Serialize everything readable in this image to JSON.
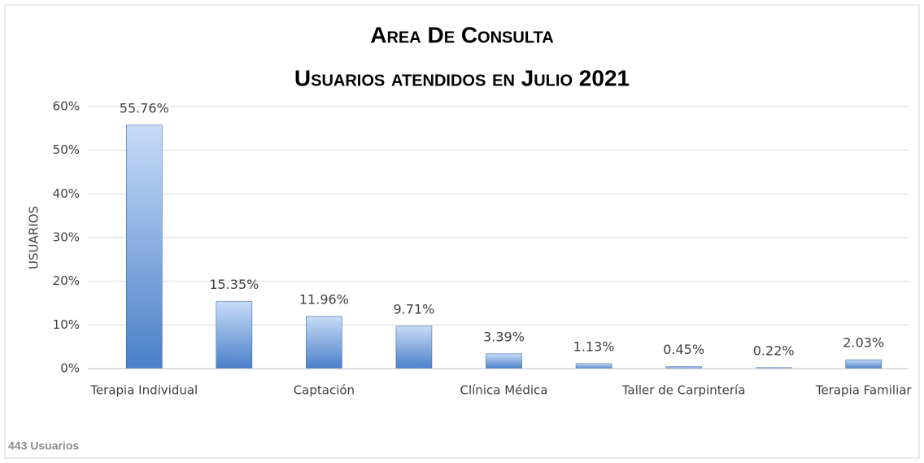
{
  "chart_data": {
    "type": "bar",
    "title": "Area De Consulta",
    "subtitle": "Usuarios atendidos en Julio 2021",
    "y_label": "USUARIOS",
    "footnote": "443 Usuarios",
    "categories": [
      "Terapia Individual",
      null,
      "Captación",
      null,
      "Clínica Médica",
      null,
      "Taller de Carpintería",
      null,
      "Terapia Familiar"
    ],
    "values": [
      55.76,
      15.35,
      11.96,
      9.71,
      3.39,
      1.13,
      0.45,
      0.22,
      2.03
    ],
    "value_labels": [
      "55.76%",
      "15.35%",
      "11.96%",
      "9.71%",
      "3.39%",
      "1.13%",
      "0.45%",
      "0.22%",
      "2.03%"
    ],
    "color": "#4a7fc9",
    "ylim": [
      0,
      60
    ],
    "yticks": [
      {
        "value": 0,
        "label": "0%"
      },
      {
        "value": 10,
        "label": "10%"
      },
      {
        "value": 20,
        "label": "20%"
      },
      {
        "value": 30,
        "label": "30%"
      },
      {
        "value": 40,
        "label": "40%"
      },
      {
        "value": 50,
        "label": "50%"
      },
      {
        "value": 60,
        "label": "60%"
      }
    ],
    "grid": true
  }
}
